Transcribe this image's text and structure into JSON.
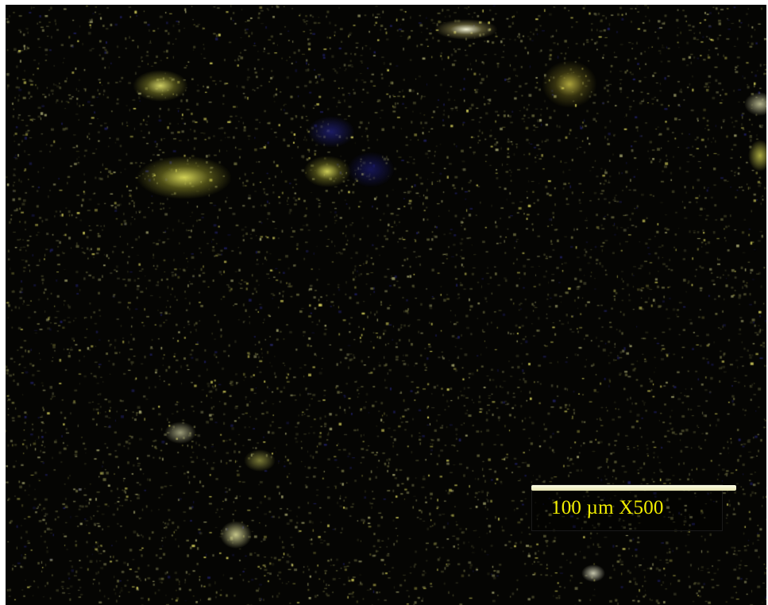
{
  "image": {
    "kind": "micrograph",
    "background_color": "#050503",
    "particle_colors": [
      "#d8d44a",
      "#c9c94d",
      "#e6e6bf",
      "#8f8f3c",
      "#1c1c5c"
    ]
  },
  "scale_bar": {
    "label": "100 µm X500",
    "label_color": "#f2ee00",
    "bar_color": "#f2f0c8"
  }
}
